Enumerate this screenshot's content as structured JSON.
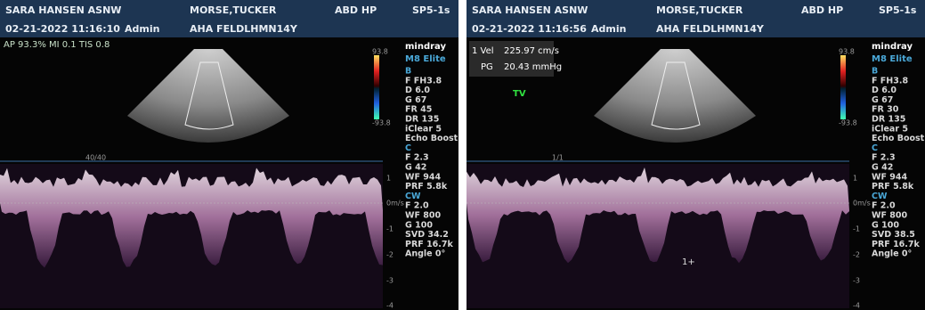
{
  "panels": [
    {
      "header": {
        "operator_name": "SARA HANSEN ASNW",
        "patient": "MORSE,TUCKER",
        "exam": "ABD HP",
        "probe": "SP5-1s",
        "datetime": "02-21-2022 11:16:10",
        "user": "Admin",
        "patient_id": "AHA FELDLHMN14Y"
      },
      "status": "AP 93.3% MI 0.1 TIS 0.8",
      "brand": "mindray",
      "model": "M8 Elite",
      "params": [
        "B",
        "F FH3.8",
        "D 6.0",
        "G 67",
        "FR 45",
        "DR 135",
        "iClear 5",
        "Echo Boost",
        "C",
        "F 2.3",
        "G 42",
        "WF 944",
        "PRF 5.8k",
        "CW",
        "F 2.0",
        "WF 800",
        "G 100",
        "SVD 34.2",
        "PRF 16.7k",
        "Angle 0°"
      ],
      "colorbar": {
        "max": "93.8",
        "min": "-93.8"
      },
      "frame": "40/40",
      "velocity_scale": [
        "1",
        "0m/s",
        "-1",
        "-2",
        "-3",
        "-4"
      ]
    },
    {
      "header": {
        "operator_name": "SARA HANSEN ASNW",
        "patient": "MORSE,TUCKER",
        "exam": "ABD HP",
        "probe": "SP5-1s",
        "datetime": "02-21-2022 11:16:56",
        "user": "Admin",
        "patient_id": "AHA FELDLHMN14Y"
      },
      "measurement": {
        "vel_label": "1 Vel",
        "vel": "225.97 cm/s",
        "pg_label": "PG",
        "pg": "20.43 mmHg"
      },
      "valve": "TV",
      "cursor": "1+",
      "brand": "mindray",
      "model": "M8 Elite",
      "params": [
        "B",
        "F FH3.8",
        "D 6.0",
        "G 67",
        "FR 30",
        "DR 135",
        "iClear 5",
        "Echo Boost",
        "C",
        "F 2.3",
        "G 42",
        "WF 944",
        "PRF 5.8k",
        "CW",
        "F 2.0",
        "WF 800",
        "G 100",
        "SVD 38.5",
        "PRF 16.7k",
        "Angle 0°"
      ],
      "colorbar": {
        "max": "93.8",
        "min": "-93.8"
      },
      "frame": "1/1",
      "velocity_scale": [
        "1",
        "0m/s",
        "-1",
        "-2",
        "-3",
        "-4"
      ]
    }
  ]
}
